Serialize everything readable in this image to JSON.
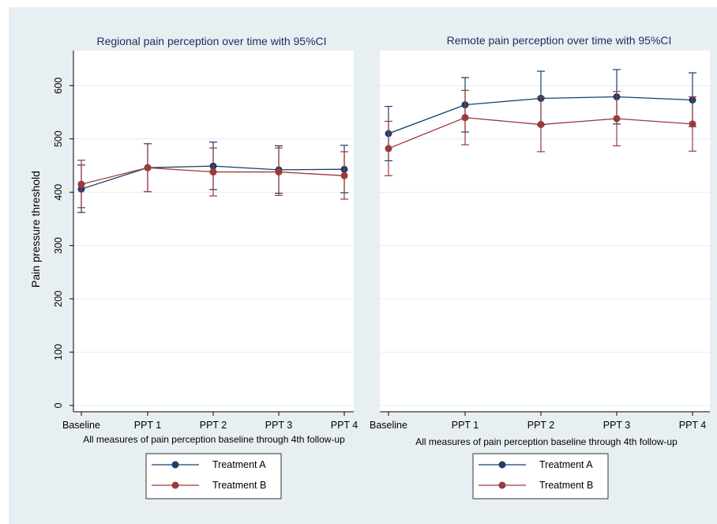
{
  "figure": {
    "ylabel": "Pain pressure threshold"
  },
  "chart_data": [
    {
      "type": "line",
      "title": "Regional pain perception over time with 95%CI",
      "xlabel": "All measures of pain perception baseline through 4th follow-up",
      "ylabel": "Pain pressure threshold",
      "categories": [
        "Baseline",
        "PPT 1",
        "PPT 2",
        "PPT 3",
        "PPT 4"
      ],
      "ylim": [
        0,
        660
      ],
      "yticks": [
        0,
        100,
        200,
        300,
        400,
        500,
        600
      ],
      "grid": true,
      "legend": "bottom",
      "series": [
        {
          "name": "Treatment A",
          "color": "#1a3f6b",
          "values": [
            406,
            446,
            449,
            442,
            443
          ],
          "ci_low": [
            362,
            401,
            405,
            398,
            399
          ],
          "ci_high": [
            451,
            491,
            494,
            487,
            488
          ]
        },
        {
          "name": "Treatment B",
          "color": "#9b3a3a",
          "values": [
            415,
            446,
            438,
            438,
            431
          ],
          "ci_low": [
            371,
            401,
            393,
            394,
            387
          ],
          "ci_high": [
            460,
            491,
            483,
            483,
            476
          ]
        }
      ]
    },
    {
      "type": "line",
      "title": "Remote pain perception over time with 95%CI",
      "xlabel": "All measures of pain perception baseline through 4th follow-up",
      "categories": [
        "Baseline",
        "PPT 1",
        "PPT 2",
        "PPT 3",
        "PPT 4"
      ],
      "ylim": [
        0,
        660
      ],
      "yticks": [
        0,
        100,
        200,
        300,
        400,
        500,
        600
      ],
      "grid": true,
      "legend": "bottom",
      "series": [
        {
          "name": "Treatment A",
          "color": "#1a3f6b",
          "values": [
            510,
            564,
            576,
            579,
            573
          ],
          "ci_low": [
            459,
            513,
            526,
            528,
            523
          ],
          "ci_high": [
            561,
            615,
            627,
            630,
            624
          ]
        },
        {
          "name": "Treatment B",
          "color": "#9b3a3a",
          "values": [
            482,
            540,
            527,
            538,
            528
          ],
          "ci_low": [
            431,
            489,
            476,
            487,
            477
          ],
          "ci_high": [
            533,
            591,
            578,
            589,
            579
          ]
        }
      ]
    }
  ]
}
